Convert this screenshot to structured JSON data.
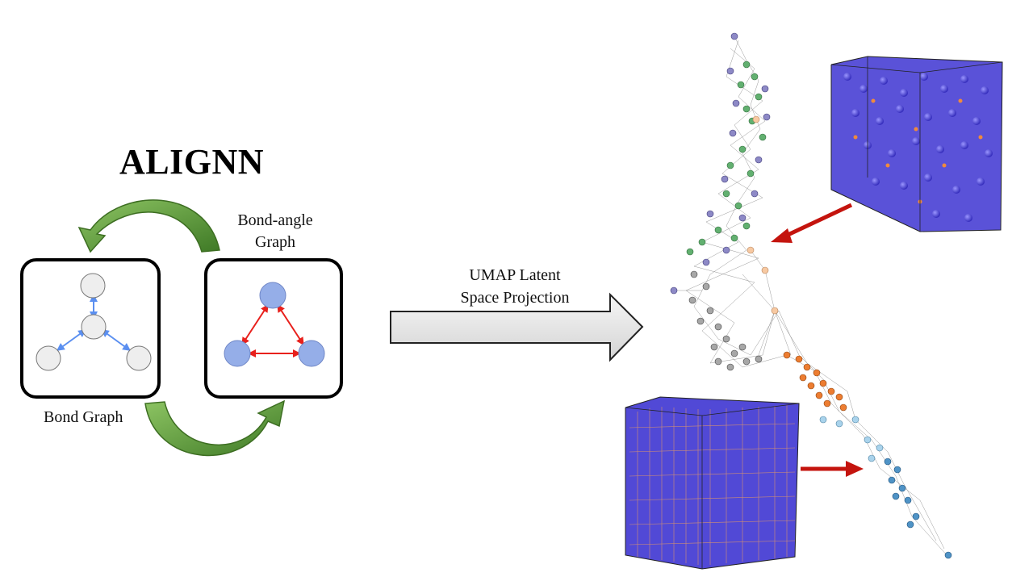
{
  "title": "ALIGNN",
  "bond_angle_label": [
    "Bond-angle",
    "Graph"
  ],
  "bond_graph_label": "Bond Graph",
  "umap_label": [
    "UMAP Latent",
    "Space Projection"
  ],
  "colors": {
    "cycle_arrow": "#6aa640",
    "bond_edge": "#5b8ff0",
    "angle_edge": "#e8201c",
    "bond_node": "#eeeeee",
    "angle_node": "#95aee8",
    "pointer_arrow": "#c4140e",
    "projection_arrow": "#e4e4e4",
    "atom_blue": "#4c45d8",
    "atom_orange": "#f08a3c"
  },
  "umap_clusters": [
    "green",
    "purple",
    "gray",
    "peach",
    "orange",
    "light-blue",
    "blue"
  ]
}
